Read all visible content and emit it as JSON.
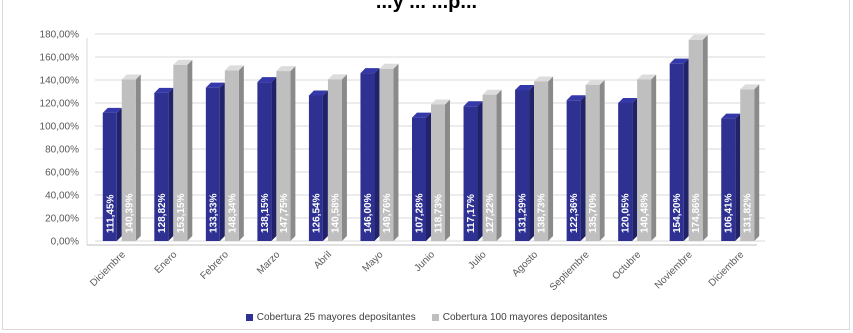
{
  "chart_data": {
    "type": "bar",
    "title": "...y ... ...p...",
    "categories": [
      "Diciembre",
      "Enero",
      "Febrero",
      "Marzo",
      "Abril",
      "Mayo",
      "Junio",
      "Julio",
      "Agosto",
      "Septiembre",
      "Octubre",
      "Noviembre",
      "Diciembre"
    ],
    "series": [
      {
        "name": "Cobertura 25 mayores depositantes",
        "color": "#2e3192",
        "values": [
          111.45,
          128.82,
          133.33,
          138.15,
          126.54,
          146.0,
          107.28,
          117.17,
          131.29,
          122.36,
          120.05,
          154.2,
          106.41
        ],
        "labels": [
          "111,45%",
          "128,82%",
          "133,33%",
          "138,15%",
          "126,54%",
          "146,00%",
          "107,28%",
          "117,17%",
          "131,29%",
          "122,36%",
          "120,05%",
          "154,20%",
          "106,41%"
        ]
      },
      {
        "name": "Cobertura 100 mayores depositantes",
        "color": "#bfbfbf",
        "values": [
          140.39,
          153.15,
          148.34,
          147.75,
          140.58,
          149.76,
          118.73,
          127.22,
          138.73,
          135.7,
          140.48,
          174.86,
          131.82
        ],
        "labels": [
          "140,39%",
          "153,15%",
          "148,34%",
          "147,75%",
          "140,58%",
          "149,76%",
          "118,73%",
          "127,22%",
          "138,73%",
          "135,70%",
          "140,48%",
          "174,86%",
          "131,82%"
        ]
      }
    ],
    "yticks": [
      "0,00%",
      "20,00%",
      "40,00%",
      "60,00%",
      "80,00%",
      "100,00%",
      "120,00%",
      "140,00%",
      "160,00%",
      "180,00%"
    ],
    "ylim": [
      0,
      180
    ],
    "grid": true,
    "legend": "bottom",
    "three_d": true
  }
}
